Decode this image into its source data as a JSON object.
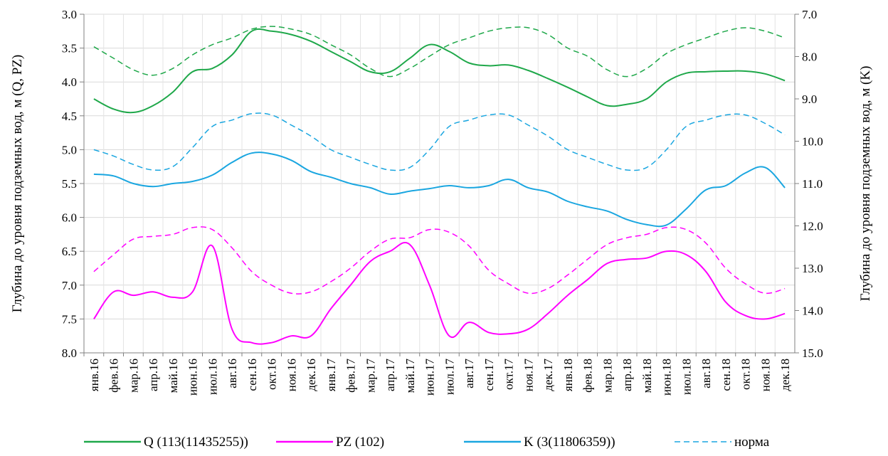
{
  "chart_data": {
    "type": "line",
    "title": "",
    "xlabel": "",
    "ylabel_left": "Глубина до уровня подземных вод, м (Q, PZ)",
    "ylabel_right": "Глубина до уровня подземных вод, м (K)",
    "ylim_left": [
      3.0,
      8.0
    ],
    "ylim_right": [
      7.0,
      15.0
    ],
    "left_axis_inverted": true,
    "right_axis_inverted": true,
    "grid": true,
    "legend_position": "bottom",
    "left_ticks": [
      "3.0",
      "3.5",
      "4.0",
      "4.5",
      "5.0",
      "5.5",
      "6.0",
      "6.5",
      "7.0",
      "7.5",
      "8.0"
    ],
    "right_ticks": [
      "7.0",
      "8.0",
      "9.0",
      "10.0",
      "11.0",
      "12.0",
      "13.0",
      "14.0",
      "15.0"
    ],
    "categories": [
      "янв.16",
      "фев.16",
      "мар.16",
      "апр.16",
      "май.16",
      "июн.16",
      "июл.16",
      "авг.16",
      "сен.16",
      "окт.16",
      "ноя.16",
      "дек.16",
      "янв.17",
      "фев.17",
      "мар.17",
      "апр.17",
      "май.17",
      "июн.17",
      "июл.17",
      "авг.17",
      "сен.17",
      "окт.17",
      "ноя.17",
      "дек.17",
      "янв.18",
      "фев.18",
      "мар.18",
      "апр.18",
      "май.18",
      "июн.18",
      "июл.18",
      "авг.18",
      "сен.18",
      "окт.18",
      "ноя.18",
      "дек.18"
    ],
    "series": [
      {
        "name": "Q (113(11435255))",
        "axis": "left",
        "color": "#1fa84a",
        "dash": false,
        "values": [
          4.25,
          4.4,
          4.45,
          4.35,
          4.15,
          3.85,
          3.8,
          3.6,
          3.25,
          3.25,
          3.3,
          3.4,
          3.55,
          3.7,
          3.85,
          3.85,
          3.65,
          3.45,
          3.55,
          3.72,
          3.76,
          3.75,
          3.83,
          3.95,
          4.08,
          4.22,
          4.35,
          4.33,
          4.25,
          4.0,
          3.87,
          3.85,
          3.84,
          3.84,
          3.88,
          3.98
        ]
      },
      {
        "name": "норма",
        "axis": "left",
        "color": "#1fa84a",
        "dash": true,
        "values": [
          3.48,
          3.65,
          3.82,
          3.9,
          3.8,
          3.6,
          3.45,
          3.35,
          3.22,
          3.18,
          3.22,
          3.3,
          3.45,
          3.6,
          3.8,
          3.92,
          3.8,
          3.62,
          3.45,
          3.35,
          3.25,
          3.2,
          3.2,
          3.3,
          3.5,
          3.62,
          3.82,
          3.92,
          3.8,
          3.58,
          3.45,
          3.35,
          3.25,
          3.2,
          3.25,
          3.35
        ]
      },
      {
        "name": "PZ (102)",
        "axis": "left",
        "color": "#ff00ff",
        "dash": false,
        "values": [
          7.5,
          7.1,
          7.15,
          7.1,
          7.18,
          7.1,
          6.42,
          7.65,
          7.85,
          7.85,
          7.75,
          7.75,
          7.35,
          7.0,
          6.65,
          6.5,
          6.4,
          7.0,
          7.75,
          7.55,
          7.7,
          7.72,
          7.65,
          7.42,
          7.15,
          6.92,
          6.68,
          6.62,
          6.6,
          6.5,
          6.55,
          6.8,
          7.25,
          7.45,
          7.5,
          7.42
        ]
      },
      {
        "name": "норма",
        "axis": "left",
        "color": "#ff00ff",
        "dash": true,
        "values": [
          6.8,
          6.55,
          6.32,
          6.28,
          6.25,
          6.15,
          6.18,
          6.45,
          6.8,
          7.0,
          7.12,
          7.1,
          6.95,
          6.75,
          6.5,
          6.32,
          6.3,
          6.18,
          6.22,
          6.42,
          6.78,
          6.98,
          7.12,
          7.05,
          6.85,
          6.62,
          6.4,
          6.3,
          6.25,
          6.15,
          6.18,
          6.38,
          6.75,
          6.98,
          7.12,
          7.05
        ]
      },
      {
        "name": "K (3(11806359))",
        "axis": "right",
        "color": "#1aa6e0",
        "dash": false,
        "values": [
          10.78,
          10.82,
          11.0,
          11.07,
          11.0,
          10.95,
          10.8,
          10.5,
          10.28,
          10.3,
          10.45,
          10.72,
          10.85,
          11.0,
          11.1,
          11.25,
          11.18,
          11.12,
          11.05,
          11.1,
          11.05,
          10.9,
          11.1,
          11.2,
          11.42,
          11.55,
          11.65,
          11.85,
          11.97,
          11.98,
          11.6,
          11.15,
          11.05,
          10.75,
          10.62,
          11.1
        ]
      },
      {
        "name": "норма",
        "axis": "right",
        "color": "#1aa6e0",
        "dash": true,
        "values": [
          10.2,
          10.35,
          10.55,
          10.68,
          10.6,
          10.15,
          9.65,
          9.5,
          9.35,
          9.38,
          9.62,
          9.88,
          10.2,
          10.38,
          10.55,
          10.68,
          10.62,
          10.2,
          9.65,
          9.5,
          9.38,
          9.38,
          9.62,
          9.88,
          10.2,
          10.38,
          10.55,
          10.68,
          10.62,
          10.2,
          9.65,
          9.5,
          9.38,
          9.38,
          9.58,
          9.85
        ]
      }
    ],
    "legend": [
      {
        "label": "Q (113(11435255))",
        "color": "#1fa84a",
        "dash": false
      },
      {
        "label": "PZ (102)",
        "color": "#ff00ff",
        "dash": false
      },
      {
        "label": "K (3(11806359))",
        "color": "#1aa6e0",
        "dash": false
      },
      {
        "label": "норма",
        "color": "#1aa6e0",
        "dash": true
      }
    ]
  }
}
